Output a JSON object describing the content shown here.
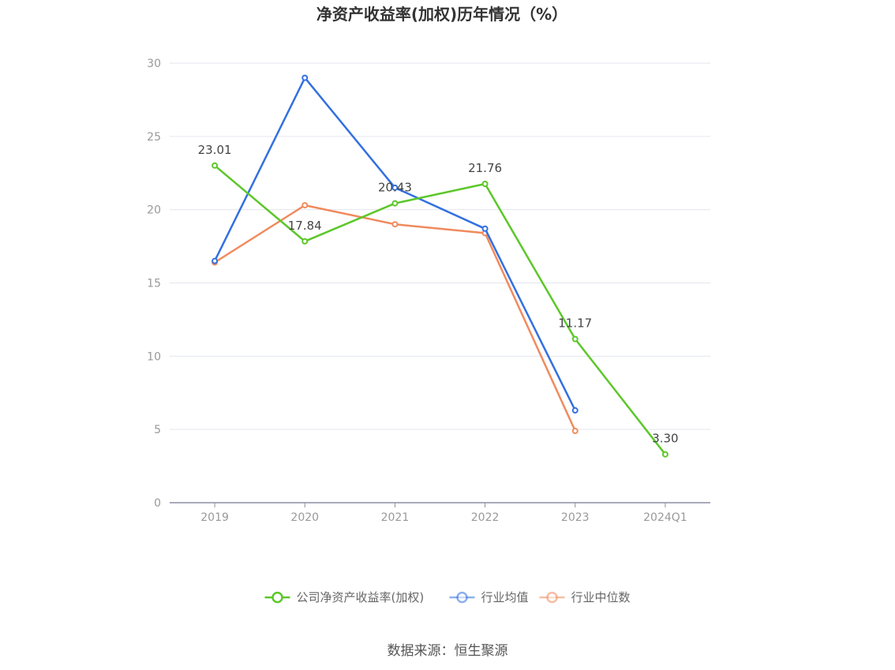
{
  "title": "净资产收益率(加权)历年情况（%）",
  "source": "数据来源：恒生聚源",
  "chart_data": {
    "type": "line",
    "title": "净资产收益率(加权)历年情况（%）",
    "categories": [
      "2019",
      "2020",
      "2021",
      "2022",
      "2023",
      "2024Q1"
    ],
    "ylim": [
      0,
      30
    ],
    "yticks": [
      0,
      5,
      10,
      15,
      20,
      25,
      30
    ],
    "grid": true,
    "legend_position": "bottom",
    "series": [
      {
        "name": "公司净资产收益率(加权)",
        "color": "#5cc72a",
        "values": [
          23.01,
          17.84,
          20.43,
          21.76,
          11.17,
          3.3
        ],
        "labels": [
          "23.01",
          "17.84",
          "20.43",
          "21.76",
          "11.17",
          "3.30"
        ]
      },
      {
        "name": "行业均值",
        "color": "#3370e0",
        "values": [
          16.5,
          29.0,
          21.5,
          18.7,
          6.3,
          null
        ]
      },
      {
        "name": "行业中位数",
        "color": "#f08a5d",
        "values": [
          16.4,
          20.3,
          19.0,
          18.4,
          4.9,
          null
        ]
      }
    ]
  }
}
